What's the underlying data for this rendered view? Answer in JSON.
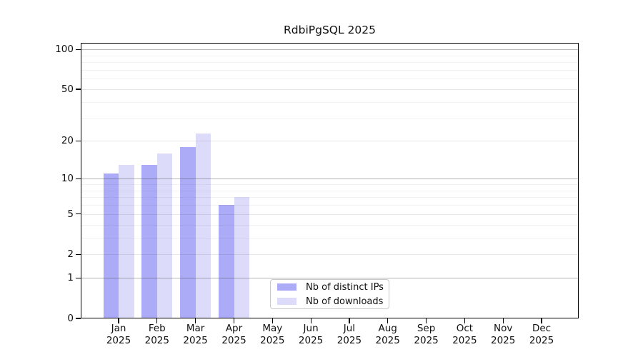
{
  "title": "RdbiPgSQL 2025",
  "colors": {
    "distinct_ips": "#ababf7",
    "downloads": "#dcdcfa",
    "axis": "#000000",
    "background": "#ffffff"
  },
  "legend": {
    "items": [
      {
        "label": "Nb of distinct IPs",
        "color": "#ababf7"
      },
      {
        "label": "Nb of downloads",
        "color": "#dcdcfa"
      }
    ]
  },
  "chart_data": {
    "type": "bar",
    "title": "RdbiPgSQL 2025",
    "categories": [
      "Jan",
      "Feb",
      "Mar",
      "Apr",
      "May",
      "Jun",
      "Jul",
      "Aug",
      "Sep",
      "Oct",
      "Nov",
      "Dec"
    ],
    "year_label": "2025",
    "series": [
      {
        "name": "Nb of distinct IPs",
        "color": "#ababf7",
        "values": [
          11,
          13,
          18,
          6,
          null,
          null,
          null,
          null,
          null,
          null,
          null,
          null
        ]
      },
      {
        "name": "Nb of downloads",
        "color": "#dcdcfa",
        "values": [
          13,
          16,
          23,
          7,
          null,
          null,
          null,
          null,
          null,
          null,
          null,
          null
        ]
      }
    ],
    "y_scale": "log10(v+1)",
    "y_ticks": [
      0,
      1,
      2,
      5,
      10,
      20,
      50,
      100
    ],
    "y_minor_ticks": [
      3,
      4,
      6,
      7,
      8,
      9,
      30,
      40,
      60,
      70,
      80,
      90
    ],
    "ylim": [
      0,
      112
    ],
    "xlabel": "",
    "ylabel": "",
    "grid": "horizontal",
    "legend_position": "lower center"
  }
}
